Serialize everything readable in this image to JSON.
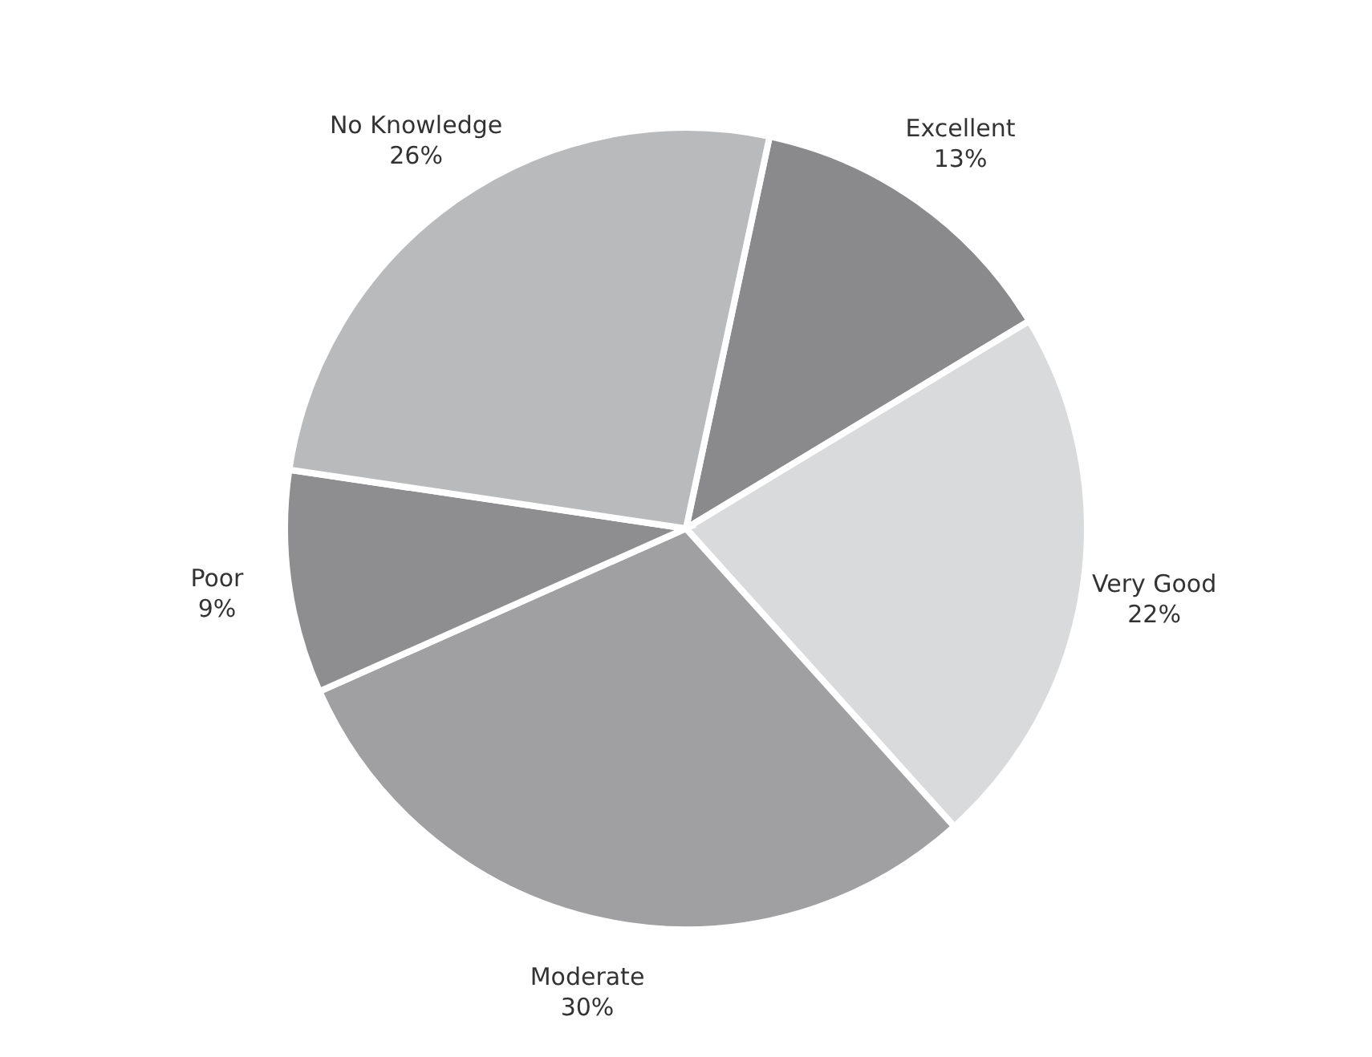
{
  "chart_data": {
    "type": "pie",
    "categories": [
      "Excellent",
      "Very Good",
      "Moderate",
      "Poor",
      "No Knowledge"
    ],
    "values": [
      13,
      22,
      30,
      9,
      26
    ],
    "value_labels": [
      "13%",
      "22%",
      "30%",
      "9%",
      "26%"
    ],
    "colors": [
      "#8a8a8c",
      "#d8dadb",
      "#a0a0a2",
      "#8e8e90",
      "#b8babb"
    ],
    "legend": false
  }
}
